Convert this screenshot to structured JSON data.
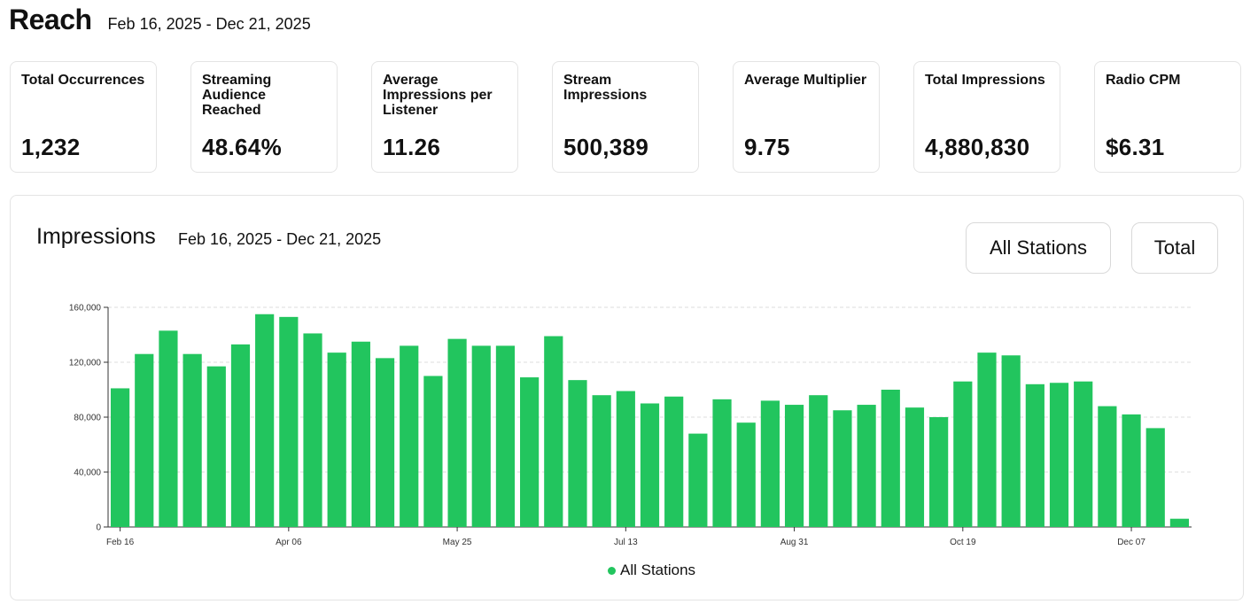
{
  "header": {
    "title": "Reach",
    "date_range": "Feb 16, 2025 - Dec 21, 2025"
  },
  "kpis": [
    {
      "label": "Total Occurrences",
      "value": "1,232"
    },
    {
      "label": "Streaming Audience Reached",
      "value": "48.64%"
    },
    {
      "label": "Average Impressions per Listener",
      "value": "11.26"
    },
    {
      "label": "Stream Impressions",
      "value": "500,389"
    },
    {
      "label": "Average Multiplier",
      "value": "9.75"
    },
    {
      "label": "Total Impressions",
      "value": "4,880,830"
    },
    {
      "label": "Radio CPM",
      "value": "$6.31"
    }
  ],
  "panel": {
    "title": "Impressions",
    "date_range": "Feb 16, 2025 - Dec 21, 2025",
    "stations_button": "All Stations",
    "total_button": "Total"
  },
  "colors": {
    "bar": "#22c55e",
    "grid": "#dddddd",
    "axis": "#333333"
  },
  "chart_data": {
    "type": "bar",
    "title": "Impressions",
    "series": [
      {
        "name": "All Stations",
        "values": [
          101000,
          126000,
          143000,
          126000,
          117000,
          133000,
          155000,
          153000,
          141000,
          127000,
          135000,
          123000,
          132000,
          110000,
          137000,
          132000,
          132000,
          109000,
          139000,
          107000,
          96000,
          99000,
          90000,
          95000,
          68000,
          93000,
          76000,
          92000,
          89000,
          96000,
          85000,
          89000,
          100000,
          87000,
          80000,
          106000,
          127000,
          125000,
          104000,
          105000,
          106000,
          88000,
          82000,
          72000,
          6000
        ]
      }
    ],
    "x_tick_labels": [
      {
        "index": 0,
        "label": "Feb 16"
      },
      {
        "index": 7,
        "label": "Apr 06"
      },
      {
        "index": 14,
        "label": "May 25"
      },
      {
        "index": 21,
        "label": "Jul 13"
      },
      {
        "index": 28,
        "label": "Aug 31"
      },
      {
        "index": 35,
        "label": "Oct 19"
      },
      {
        "index": 42,
        "label": "Dec 07"
      }
    ],
    "y_ticks": [
      0,
      40000,
      80000,
      120000,
      160000
    ],
    "y_tick_labels": [
      "0",
      "40,000",
      "80,000",
      "120,000",
      "160,000"
    ],
    "ylim": [
      0,
      160000
    ],
    "grid": true,
    "legend": "bottom-center"
  }
}
